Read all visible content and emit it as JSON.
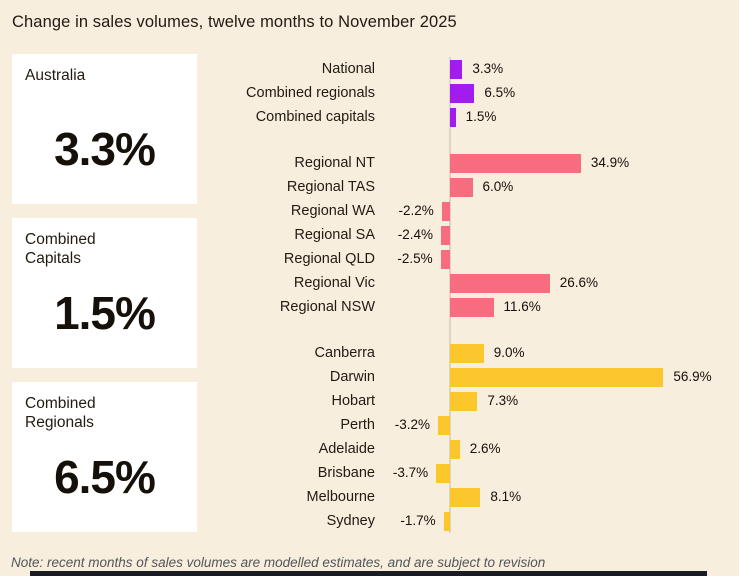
{
  "title": "Change in sales volumes, twelve months to November 2025",
  "note": "Note: recent months of sales volumes are modelled estimates, and are subject to revision",
  "summary_cards": [
    {
      "label": "Australia",
      "value": "3.3%"
    },
    {
      "label": "Combined Capitals",
      "value": "1.5%"
    },
    {
      "label": "Combined Regionals",
      "value": "6.5%"
    }
  ],
  "colors": {
    "background": "#f7eedd",
    "card_background": "#ffffff",
    "national_purple": "#a21cf0",
    "regional_pink": "#f86c80",
    "capital_yellow": "#fcc62d",
    "text": "#211b12",
    "note_text": "#53565c",
    "zero_line": "#ddd5c4",
    "footer_bar": "#1b1b25"
  },
  "chart_data": {
    "type": "bar",
    "orientation": "horizontal",
    "unit": "%",
    "xlim": [
      -5,
      60
    ],
    "title": "Change in sales volumes, twelve months to November 2025",
    "legend": "none",
    "grid": "off",
    "groups": [
      {
        "name": "national-aggregates",
        "color": "#a21cf0",
        "rows": [
          {
            "label": "National",
            "value": 3.3,
            "value_label": "3.3%"
          },
          {
            "label": "Combined regionals",
            "value": 6.5,
            "value_label": "6.5%"
          },
          {
            "label": "Combined capitals",
            "value": 1.5,
            "value_label": "1.5%"
          }
        ]
      },
      {
        "name": "regional-areas",
        "color": "#f86c80",
        "rows": [
          {
            "label": "Regional NT",
            "value": 34.9,
            "value_label": "34.9%"
          },
          {
            "label": "Regional TAS",
            "value": 6.0,
            "value_label": "6.0%"
          },
          {
            "label": "Regional WA",
            "value": -2.2,
            "value_label": "-2.2%"
          },
          {
            "label": "Regional SA",
            "value": -2.4,
            "value_label": "-2.4%"
          },
          {
            "label": "Regional QLD",
            "value": -2.5,
            "value_label": "-2.5%"
          },
          {
            "label": "Regional Vic",
            "value": 26.6,
            "value_label": "26.6%"
          },
          {
            "label": "Regional NSW",
            "value": 11.6,
            "value_label": "11.6%"
          }
        ]
      },
      {
        "name": "capital-cities",
        "color": "#fcc62d",
        "rows": [
          {
            "label": "Canberra",
            "value": 9.0,
            "value_label": "9.0%"
          },
          {
            "label": "Darwin",
            "value": 56.9,
            "value_label": "56.9%"
          },
          {
            "label": "Hobart",
            "value": 7.3,
            "value_label": "7.3%"
          },
          {
            "label": "Perth",
            "value": -3.2,
            "value_label": "-3.2%"
          },
          {
            "label": "Adelaide",
            "value": 2.6,
            "value_label": "2.6%"
          },
          {
            "label": "Brisbane",
            "value": -3.7,
            "value_label": "-3.7%"
          },
          {
            "label": "Melbourne",
            "value": 8.1,
            "value_label": "8.1%"
          },
          {
            "label": "Sydney",
            "value": -1.7,
            "value_label": "-1.7%"
          }
        ]
      }
    ]
  }
}
